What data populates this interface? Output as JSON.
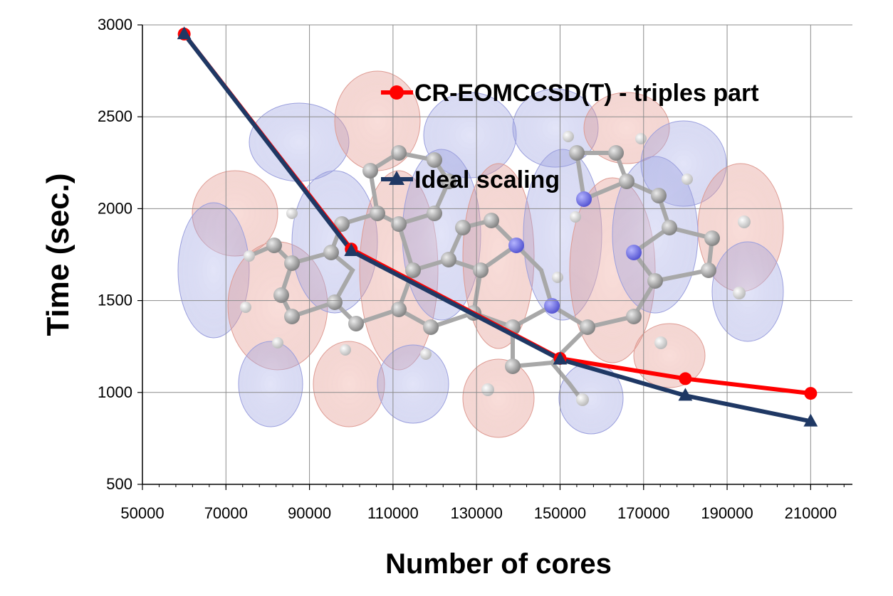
{
  "chart_data": {
    "type": "line",
    "xlabel": "Number of cores",
    "ylabel": "Time (sec.)",
    "xlim": [
      50000,
      220000
    ],
    "ylim": [
      500,
      3000
    ],
    "x_ticks": [
      50000,
      70000,
      90000,
      110000,
      130000,
      150000,
      170000,
      190000,
      210000
    ],
    "y_ticks": [
      500,
      1000,
      1500,
      2000,
      2500,
      3000
    ],
    "grid": true,
    "legend_position": "top-center",
    "series": [
      {
        "name": "CR-EOMCCSD(T) - triples part",
        "color": "#ff0000",
        "marker": "circle",
        "x": [
          60000,
          100000,
          150000,
          180000,
          210000
        ],
        "y": [
          2950,
          1780,
          1185,
          1075,
          995
        ]
      },
      {
        "name": "Ideal scaling",
        "color": "#1f3864",
        "marker": "triangle",
        "x": [
          60000,
          100000,
          150000,
          180000,
          210000
        ],
        "y": [
          2950,
          1770,
          1180,
          983,
          843
        ]
      }
    ],
    "background_image": "molecular-orbital-isosurface"
  }
}
